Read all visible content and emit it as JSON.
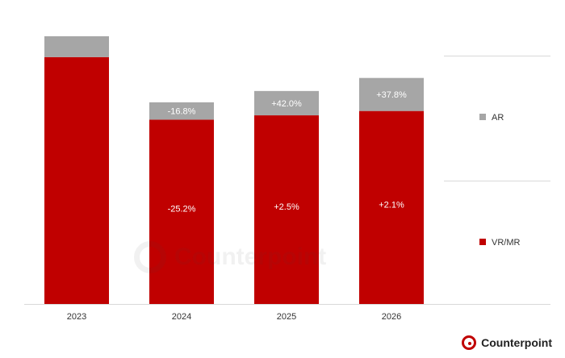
{
  "chart_data": {
    "type": "bar",
    "stacked": true,
    "categories": [
      "2023",
      "2024",
      "2025",
      "2026"
    ],
    "series": [
      {
        "name": "VR/MR",
        "color": "#c00000",
        "values": [
          284,
          212,
          217,
          222
        ]
      },
      {
        "name": "AR",
        "color": "#a6a6a6",
        "values": [
          24,
          20,
          28,
          38
        ]
      }
    ],
    "labels": {
      "VR/MR": [
        "",
        "-25.2%",
        "+2.5%",
        "+2.1%"
      ],
      "AR": [
        "",
        "-16.8%",
        "+42.0%",
        "+37.8%"
      ]
    },
    "ylim": [
      0,
      320
    ],
    "legend_position": "right"
  },
  "watermark": "Counterpoint",
  "brand": {
    "name": "Counterpoint",
    "icon": "counterpoint-logo-icon"
  }
}
